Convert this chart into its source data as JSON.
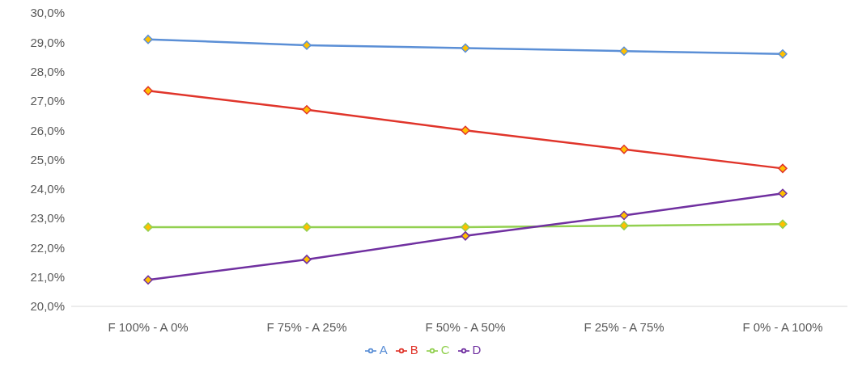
{
  "chart_data": {
    "type": "line",
    "categories": [
      "F 100% - A 0%",
      "F 75% - A 25%",
      "F 50% - A 50%",
      "F 25% - A 75%",
      "F 0% - A 100%"
    ],
    "series": [
      {
        "name": "A",
        "color": "#5b8fd6",
        "values": [
          29.1,
          28.9,
          28.8,
          28.7,
          28.6
        ]
      },
      {
        "name": "B",
        "color": "#e0352b",
        "values": [
          27.35,
          26.7,
          26.0,
          25.35,
          24.7
        ]
      },
      {
        "name": "C",
        "color": "#92d050",
        "values": [
          22.7,
          22.7,
          22.7,
          22.75,
          22.8
        ]
      },
      {
        "name": "D",
        "color": "#7030a0",
        "values": [
          20.9,
          21.6,
          22.4,
          23.1,
          23.85
        ]
      }
    ],
    "ylim": [
      20,
      30
    ],
    "yticks": [
      {
        "value": 20,
        "label": "20,0%"
      },
      {
        "value": 21,
        "label": "21,0%"
      },
      {
        "value": 22,
        "label": "22,0%"
      },
      {
        "value": 23,
        "label": "23,0%"
      },
      {
        "value": 24,
        "label": "24,0%"
      },
      {
        "value": 25,
        "label": "25,0%"
      },
      {
        "value": 26,
        "label": "26,0%"
      },
      {
        "value": 27,
        "label": "27,0%"
      },
      {
        "value": 28,
        "label": "28,0%"
      },
      {
        "value": 29,
        "label": "29,0%"
      },
      {
        "value": 30,
        "label": "30,0%"
      }
    ],
    "legend": "bottom",
    "marker": "diamond",
    "line_style": "solid",
    "grid": false
  }
}
